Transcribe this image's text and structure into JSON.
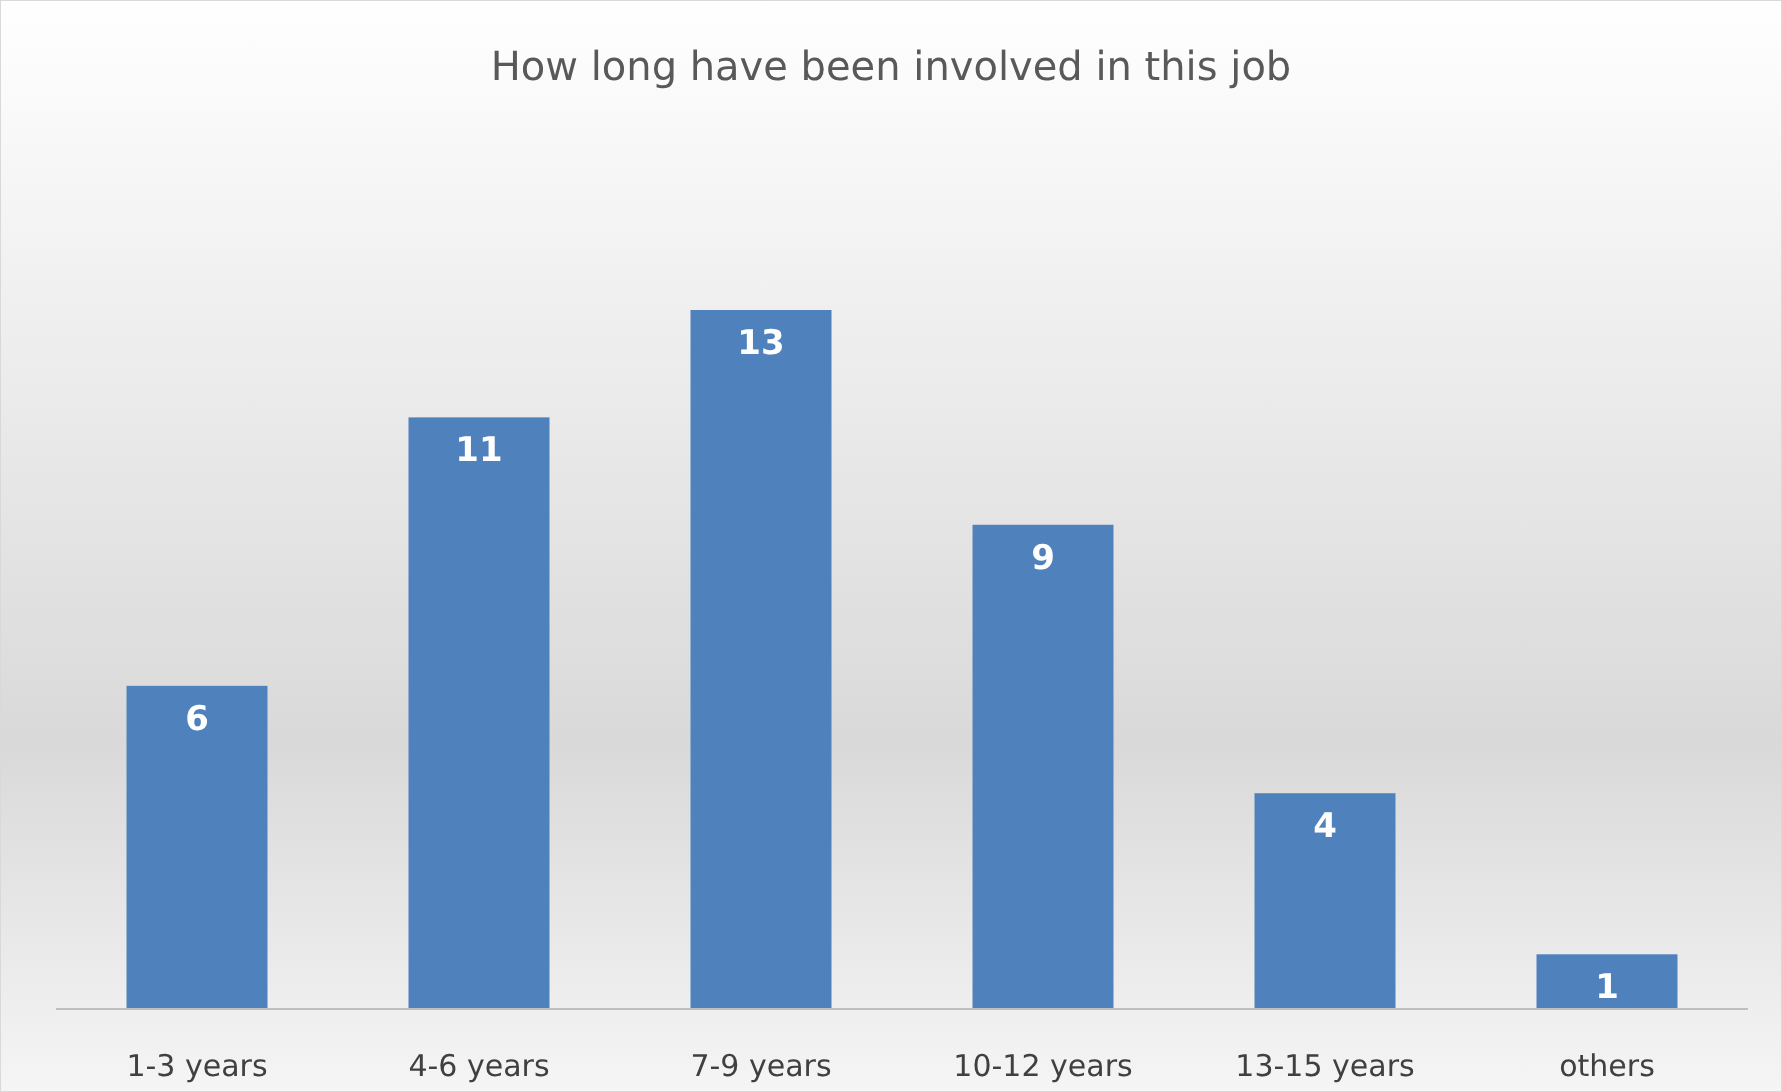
{
  "chart_data": {
    "type": "bar",
    "title": "How long have been involved in this job",
    "categories": [
      "1-3 years",
      "4-6 years",
      "7-9 years",
      "10-12 years",
      "13-15 years",
      "others"
    ],
    "values": [
      6,
      11,
      13,
      9,
      4,
      1
    ],
    "color": "#4f81bd",
    "data_labels": true
  }
}
